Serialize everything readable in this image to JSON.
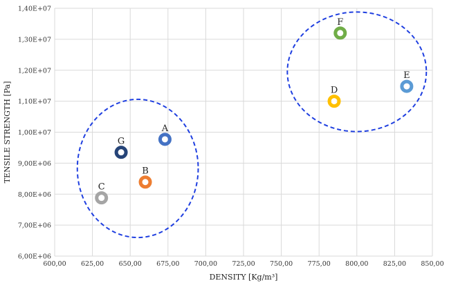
{
  "chart_data": {
    "type": "scatter",
    "title": "",
    "xlabel": "DENSITY [Kg/m³]",
    "ylabel": "TENSILE STRENGTH [Pa]",
    "xlim": [
      600,
      850
    ],
    "ylim": [
      6000000,
      14000000
    ],
    "x_ticks": [
      "600,00",
      "625,00",
      "650,00",
      "675,00",
      "700,00",
      "725,00",
      "750,00",
      "775,00",
      "800,00",
      "825,00",
      "850,00"
    ],
    "y_ticks": [
      "6,00E+06",
      "7,00E+06",
      "8,00E+06",
      "9,00E+06",
      "1,00E+07",
      "1,10E+07",
      "1,20E+07",
      "1,30E+07",
      "1,40E+07"
    ],
    "grid": true,
    "legend": "none",
    "points": [
      {
        "label": "A",
        "x": 673,
        "y": 9770000,
        "color": "#4472C4"
      },
      {
        "label": "B",
        "x": 660,
        "y": 8390000,
        "color": "#ED7D31"
      },
      {
        "label": "C",
        "x": 631,
        "y": 7880000,
        "color": "#A5A5A5"
      },
      {
        "label": "D",
        "x": 785,
        "y": 11000000,
        "color": "#FFC000"
      },
      {
        "label": "E",
        "x": 833,
        "y": 11480000,
        "color": "#5B9BD5"
      },
      {
        "label": "F",
        "x": 789,
        "y": 13200000,
        "color": "#70AD47"
      },
      {
        "label": "G",
        "x": 644,
        "y": 9350000,
        "color": "#264478"
      }
    ],
    "clusters": [
      {
        "cx": 655,
        "cy": 8830000,
        "rx": 40,
        "ry": 2230000
      },
      {
        "cx": 800,
        "cy": 11950000,
        "rx": 46,
        "ry": 1930000
      }
    ],
    "cluster_color": "#1F3FE0"
  }
}
